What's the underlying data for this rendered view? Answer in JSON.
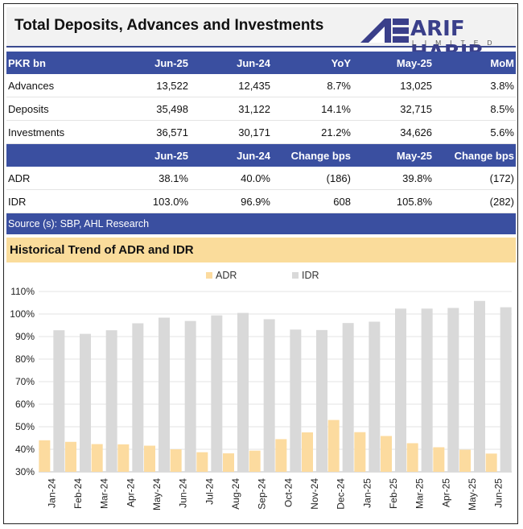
{
  "header": {
    "title": "Total Deposits, Advances and Investments",
    "logo_main": "ARIF HABIB",
    "logo_sub": "LIMITED",
    "brand_color": "#3a3f8a"
  },
  "table1": {
    "headers": [
      "PKR bn",
      "Jun-25",
      "Jun-24",
      "YoY",
      "May-25",
      "MoM"
    ],
    "rows": [
      [
        "Advances",
        "13,522",
        "12,435",
        "8.7%",
        "13,025",
        "3.8%"
      ],
      [
        "Deposits",
        "35,498",
        "31,122",
        "14.1%",
        "32,715",
        "8.5%"
      ],
      [
        "Investments",
        "36,571",
        "30,171",
        "21.2%",
        "34,626",
        "5.6%"
      ]
    ]
  },
  "table2": {
    "headers": [
      "",
      "Jun-25",
      "Jun-24",
      "Change bps",
      "May-25",
      "Change bps"
    ],
    "rows": [
      [
        "ADR",
        "38.1%",
        "40.0%",
        "(186)",
        "39.8%",
        "(172)"
      ],
      [
        "IDR",
        "103.0%",
        "96.9%",
        "608",
        "105.8%",
        "(282)"
      ]
    ]
  },
  "source": "Source (s): SBP, AHL Research",
  "chart_title": "Historical Trend of ADR and IDR",
  "chart_data": {
    "type": "bar",
    "title": "Historical Trend of ADR and IDR",
    "categories": [
      "Jan-24",
      "Feb-24",
      "Mar-24",
      "Apr-24",
      "May-24",
      "Jun-24",
      "Jul-24",
      "Aug-24",
      "Sep-24",
      "Oct-24",
      "Nov-24",
      "Dec-24",
      "Jan-25",
      "Feb-25",
      "Mar-25",
      "Apr-25",
      "May-25",
      "Jun-25"
    ],
    "series": [
      {
        "name": "ADR",
        "color": "#fcdb9f",
        "values": [
          44.0,
          43.3,
          42.3,
          42.2,
          41.6,
          40.0,
          38.7,
          38.2,
          39.4,
          44.5,
          47.5,
          53.0,
          47.6,
          45.9,
          42.7,
          40.9,
          39.8,
          38.1
        ]
      },
      {
        "name": "IDR",
        "color": "#d9d9d9",
        "values": [
          92.8,
          91.2,
          92.8,
          95.9,
          98.4,
          96.9,
          99.4,
          100.5,
          97.7,
          93.1,
          92.9,
          96.0,
          96.6,
          102.4,
          102.4,
          102.7,
          105.8,
          103.0
        ]
      }
    ],
    "ylim": [
      30,
      110
    ],
    "yticks": [
      "30%",
      "40%",
      "50%",
      "60%",
      "70%",
      "80%",
      "90%",
      "100%",
      "110%"
    ],
    "grid": true,
    "legend": "top"
  }
}
